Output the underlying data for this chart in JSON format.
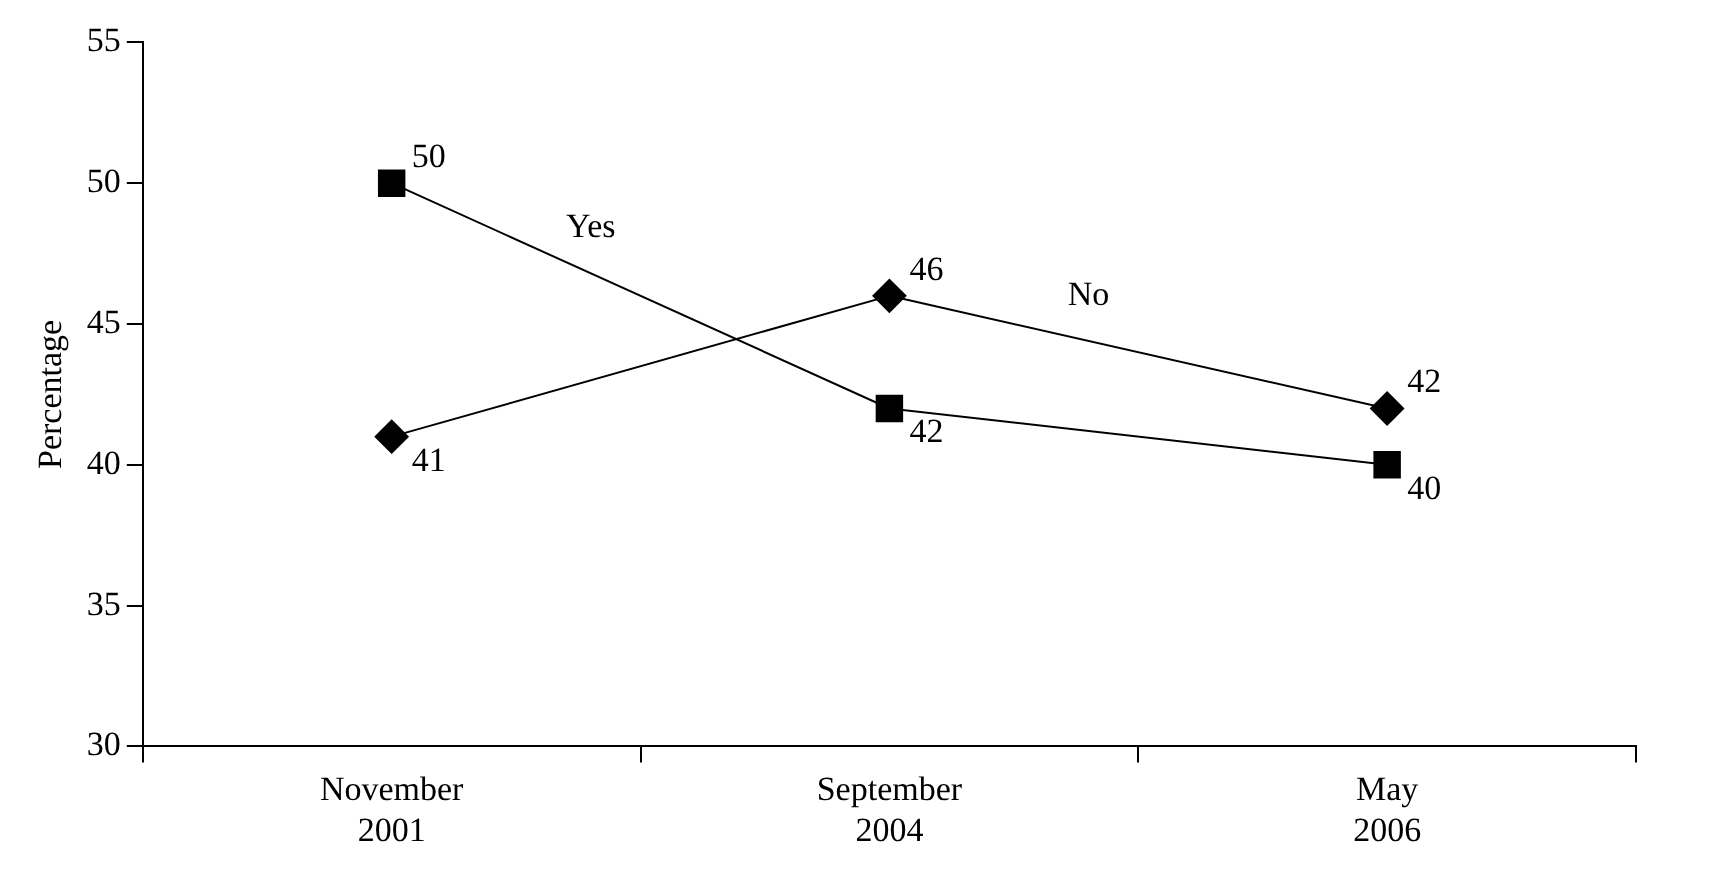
{
  "chart_data": {
    "type": "line",
    "ylabel": "Percentage",
    "categories": [
      "November 2001",
      "September 2004",
      "May 2006"
    ],
    "series": [
      {
        "name": "Yes",
        "color": "#000000",
        "marker": "square",
        "values": [
          50,
          42,
          40
        ]
      },
      {
        "name": "No",
        "color": "#000000",
        "marker": "diamond",
        "values": [
          41,
          46,
          42
        ]
      }
    ],
    "ylim": [
      30,
      55
    ],
    "yticks": [
      30,
      35,
      40,
      45,
      50,
      55
    ],
    "grid": false,
    "legend": false,
    "data_labels": true,
    "line_style": "solid"
  }
}
